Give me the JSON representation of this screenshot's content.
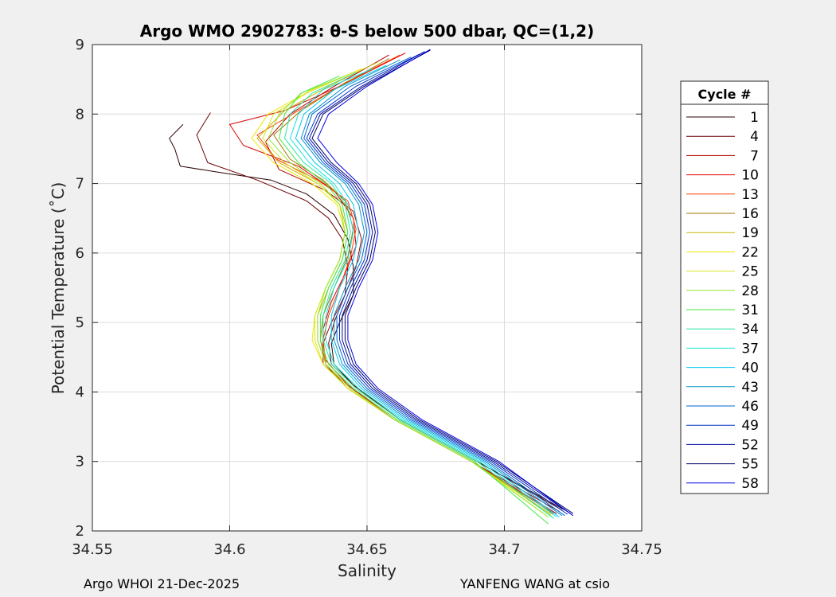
{
  "footer": {
    "left": "Argo WHOI 21-Dec-2025",
    "right": "YANFENG WANG at csio"
  },
  "chart_data": {
    "type": "line",
    "title": "Argo WMO 2902783: θ-S below 500 dbar,  QC=(1,2)",
    "xlabel": "Salinity",
    "ylabel": "Potential Temperature (˚C)",
    "xlim": [
      34.55,
      34.75
    ],
    "ylim": [
      2,
      9
    ],
    "xticks": [
      34.55,
      34.6,
      34.65,
      34.7,
      34.75
    ],
    "xtick_labels": [
      "34.55",
      "34.6",
      "34.65",
      "34.7",
      "34.75"
    ],
    "yticks": [
      2,
      3,
      4,
      5,
      6,
      7,
      8,
      9
    ],
    "ytick_labels": [
      "2",
      "3",
      "4",
      "5",
      "6",
      "7",
      "8",
      "9"
    ],
    "grid": true,
    "legend": {
      "title": "Cycle #",
      "placement": "right-outside"
    },
    "series": [
      {
        "name": "1",
        "color": "#2b0000",
        "x": [
          34.583,
          34.578,
          34.58,
          34.582,
          34.598,
          34.615,
          34.628,
          34.638,
          34.643,
          34.645,
          34.645,
          34.64,
          34.637,
          34.638,
          34.645,
          34.662,
          34.69,
          34.722
        ],
        "y": [
          7.85,
          7.65,
          7.5,
          7.25,
          7.15,
          7.05,
          6.85,
          6.55,
          6.2,
          5.8,
          5.4,
          5.0,
          4.7,
          4.4,
          4.1,
          3.6,
          3.0,
          2.3
        ]
      },
      {
        "name": "4",
        "color": "#6b0000",
        "x": [
          34.593,
          34.588,
          34.592,
          34.61,
          34.628,
          34.636,
          34.641,
          34.643,
          34.642,
          34.638,
          34.636,
          34.637,
          34.645,
          34.662,
          34.69,
          34.721
        ],
        "y": [
          8.02,
          7.7,
          7.3,
          7.05,
          6.75,
          6.5,
          6.2,
          5.8,
          5.4,
          5.0,
          4.7,
          4.4,
          4.1,
          3.6,
          3.0,
          2.3
        ]
      },
      {
        "name": "7",
        "color": "#b00000",
        "x": [
          34.658,
          34.638,
          34.622,
          34.613,
          34.618,
          34.635,
          34.645,
          34.648,
          34.646,
          34.642,
          34.637,
          34.634,
          34.634,
          34.643,
          34.66,
          34.688,
          34.72
        ],
        "y": [
          8.85,
          8.4,
          8.0,
          7.6,
          7.2,
          6.9,
          6.6,
          6.2,
          5.8,
          5.4,
          5.0,
          4.7,
          4.4,
          4.1,
          3.6,
          3.0,
          2.28
        ]
      },
      {
        "name": "10",
        "color": "#e00000",
        "x": [
          34.664,
          34.64,
          34.62,
          34.6,
          34.605,
          34.625,
          34.638,
          34.645,
          34.646,
          34.642,
          34.637,
          34.634,
          34.634,
          34.643,
          34.66,
          34.688,
          34.719
        ],
        "y": [
          8.88,
          8.4,
          8.05,
          7.85,
          7.55,
          7.25,
          6.9,
          6.5,
          6.1,
          5.7,
          5.3,
          4.9,
          4.5,
          4.1,
          3.6,
          3.0,
          2.25
        ]
      },
      {
        "name": "13",
        "color": "#ff3a00",
        "x": [
          34.662,
          34.642,
          34.625,
          34.61,
          34.617,
          34.632,
          34.643,
          34.646,
          34.644,
          34.64,
          34.636,
          34.634,
          34.635,
          34.643,
          34.66,
          34.688,
          34.718
        ],
        "y": [
          8.85,
          8.45,
          8.05,
          7.7,
          7.35,
          7.05,
          6.75,
          6.35,
          5.95,
          5.5,
          5.1,
          4.75,
          4.4,
          4.05,
          3.6,
          3.0,
          2.25
        ]
      },
      {
        "name": "16",
        "color": "#a07800",
        "x": [
          34.658,
          34.64,
          34.626,
          34.616,
          34.622,
          34.634,
          34.642,
          34.645,
          34.643,
          34.638,
          34.634,
          34.633,
          34.635,
          34.643,
          34.66,
          34.688,
          34.718
        ],
        "y": [
          8.8,
          8.4,
          8.05,
          7.7,
          7.35,
          7.05,
          6.75,
          6.35,
          5.95,
          5.5,
          5.1,
          4.75,
          4.4,
          4.05,
          3.6,
          3.0,
          2.25
        ]
      },
      {
        "name": "19",
        "color": "#c8b400",
        "x": [
          34.654,
          34.636,
          34.62,
          34.61,
          34.618,
          34.632,
          34.64,
          34.643,
          34.641,
          34.636,
          34.632,
          34.632,
          34.635,
          34.644,
          34.66,
          34.688,
          34.717
        ],
        "y": [
          8.75,
          8.4,
          8.05,
          7.65,
          7.3,
          7.0,
          6.7,
          6.3,
          5.9,
          5.5,
          5.1,
          4.75,
          4.4,
          4.05,
          3.6,
          3.0,
          2.24
        ]
      },
      {
        "name": "22",
        "color": "#f0e600",
        "x": [
          34.648,
          34.63,
          34.614,
          34.608,
          34.616,
          34.63,
          34.639,
          34.642,
          34.64,
          34.635,
          34.631,
          34.63,
          34.634,
          34.643,
          34.66,
          34.688,
          34.717
        ],
        "y": [
          8.65,
          8.35,
          8.0,
          7.65,
          7.3,
          7.0,
          6.7,
          6.3,
          5.9,
          5.5,
          5.1,
          4.75,
          4.4,
          4.05,
          3.6,
          3.0,
          2.22
        ]
      },
      {
        "name": "25",
        "color": "#d2e620",
        "x": [
          34.645,
          34.628,
          34.616,
          34.612,
          34.62,
          34.632,
          34.64,
          34.642,
          34.64,
          34.635,
          34.631,
          34.631,
          34.634,
          34.643,
          34.66,
          34.688,
          34.716
        ],
        "y": [
          8.6,
          8.3,
          8.0,
          7.65,
          7.3,
          7.0,
          6.7,
          6.3,
          5.9,
          5.5,
          5.1,
          4.75,
          4.4,
          4.05,
          3.6,
          3.0,
          2.2
        ]
      },
      {
        "name": "28",
        "color": "#96e632",
        "x": [
          34.642,
          34.626,
          34.618,
          34.614,
          34.622,
          34.633,
          34.64,
          34.642,
          34.64,
          34.635,
          34.632,
          34.632,
          34.635,
          34.644,
          34.66,
          34.688,
          34.716
        ],
        "y": [
          8.55,
          8.3,
          8.0,
          7.65,
          7.3,
          7.0,
          6.7,
          6.3,
          5.9,
          5.5,
          5.1,
          4.75,
          4.4,
          4.05,
          3.6,
          3.0,
          2.2
        ]
      },
      {
        "name": "31",
        "color": "#46e646",
        "x": [
          34.64,
          34.626,
          34.62,
          34.618,
          34.625,
          34.635,
          34.641,
          34.643,
          34.641,
          34.636,
          34.633,
          34.633,
          34.636,
          34.645,
          34.661,
          34.689,
          34.716
        ],
        "y": [
          8.55,
          8.3,
          8.0,
          7.65,
          7.3,
          7.0,
          6.7,
          6.3,
          5.9,
          5.5,
          5.1,
          4.75,
          4.4,
          4.05,
          3.6,
          3.0,
          2.1
        ]
      },
      {
        "name": "34",
        "color": "#28e6a0",
        "x": [
          34.646,
          34.63,
          34.622,
          34.62,
          34.627,
          34.637,
          34.642,
          34.644,
          34.642,
          34.637,
          34.634,
          34.634,
          34.637,
          34.646,
          34.662,
          34.69,
          34.718
        ],
        "y": [
          8.6,
          8.3,
          8.0,
          7.65,
          7.3,
          7.0,
          6.7,
          6.3,
          5.9,
          5.5,
          5.1,
          4.75,
          4.4,
          4.05,
          3.6,
          3.0,
          2.18
        ]
      },
      {
        "name": "37",
        "color": "#14e6dc",
        "x": [
          34.652,
          34.634,
          34.625,
          34.622,
          34.629,
          34.638,
          34.643,
          34.645,
          34.643,
          34.638,
          34.635,
          34.635,
          34.638,
          34.647,
          34.663,
          34.691,
          34.719
        ],
        "y": [
          8.65,
          8.35,
          8.0,
          7.65,
          7.3,
          7.0,
          6.7,
          6.3,
          5.9,
          5.5,
          5.1,
          4.75,
          4.4,
          4.05,
          3.6,
          3.0,
          2.2
        ]
      },
      {
        "name": "40",
        "color": "#00c8f0",
        "x": [
          34.657,
          34.638,
          34.627,
          34.624,
          34.631,
          34.64,
          34.645,
          34.647,
          34.645,
          34.64,
          34.637,
          34.637,
          34.64,
          34.648,
          34.664,
          34.692,
          34.72
        ],
        "y": [
          8.7,
          8.35,
          8.0,
          7.65,
          7.3,
          7.0,
          6.7,
          6.3,
          5.9,
          5.5,
          5.1,
          4.75,
          4.4,
          4.05,
          3.6,
          3.0,
          2.2
        ]
      },
      {
        "name": "43",
        "color": "#0096c8",
        "x": [
          34.662,
          34.642,
          34.629,
          34.626,
          34.633,
          34.642,
          34.647,
          34.649,
          34.647,
          34.642,
          34.638,
          34.638,
          34.641,
          34.649,
          34.665,
          34.693,
          34.721
        ],
        "y": [
          8.78,
          8.4,
          8.0,
          7.65,
          7.3,
          7.0,
          6.7,
          6.3,
          5.9,
          5.5,
          5.1,
          4.75,
          4.4,
          4.05,
          3.6,
          3.0,
          2.22
        ]
      },
      {
        "name": "46",
        "color": "#0064d2",
        "x": [
          34.666,
          34.644,
          34.63,
          34.627,
          34.634,
          34.643,
          34.648,
          34.65,
          34.648,
          34.643,
          34.639,
          34.639,
          34.642,
          34.65,
          34.666,
          34.694,
          34.722
        ],
        "y": [
          8.82,
          8.4,
          8.0,
          7.65,
          7.3,
          7.0,
          6.7,
          6.3,
          5.9,
          5.5,
          5.1,
          4.75,
          4.4,
          4.05,
          3.6,
          3.0,
          2.22
        ]
      },
      {
        "name": "49",
        "color": "#0032c8",
        "x": [
          34.669,
          34.646,
          34.632,
          34.628,
          34.635,
          34.644,
          34.649,
          34.651,
          34.649,
          34.644,
          34.64,
          34.64,
          34.643,
          34.651,
          34.667,
          34.695,
          34.723
        ],
        "y": [
          8.86,
          8.4,
          8.0,
          7.65,
          7.3,
          7.0,
          6.7,
          6.3,
          5.9,
          5.5,
          5.1,
          4.75,
          4.4,
          4.05,
          3.6,
          3.0,
          2.24
        ]
      },
      {
        "name": "52",
        "color": "#000aa0",
        "x": [
          34.671,
          34.648,
          34.633,
          34.629,
          34.636,
          34.645,
          34.65,
          34.652,
          34.65,
          34.645,
          34.641,
          34.641,
          34.644,
          34.652,
          34.668,
          34.696,
          34.724
        ],
        "y": [
          8.9,
          8.4,
          8.0,
          7.65,
          7.3,
          7.0,
          6.7,
          6.3,
          5.9,
          5.5,
          5.1,
          4.75,
          4.4,
          4.05,
          3.6,
          3.0,
          2.25
        ]
      },
      {
        "name": "55",
        "color": "#000064",
        "x": [
          34.673,
          34.649,
          34.634,
          34.63,
          34.637,
          34.646,
          34.651,
          34.653,
          34.651,
          34.646,
          34.642,
          34.642,
          34.645,
          34.653,
          34.669,
          34.697,
          34.725
        ],
        "y": [
          8.92,
          8.4,
          8.0,
          7.65,
          7.3,
          7.0,
          6.7,
          6.3,
          5.9,
          5.5,
          5.1,
          4.75,
          4.4,
          4.05,
          3.6,
          3.0,
          2.25
        ]
      },
      {
        "name": "58",
        "color": "#0000e6",
        "x": [
          34.673,
          34.65,
          34.636,
          34.632,
          34.639,
          34.647,
          34.652,
          34.654,
          34.652,
          34.647,
          34.643,
          34.643,
          34.646,
          34.654,
          34.67,
          34.698,
          34.725
        ],
        "y": [
          8.93,
          8.4,
          8.0,
          7.65,
          7.3,
          7.0,
          6.7,
          6.3,
          5.9,
          5.5,
          5.1,
          4.75,
          4.4,
          4.05,
          3.6,
          3.0,
          2.22
        ]
      }
    ]
  }
}
